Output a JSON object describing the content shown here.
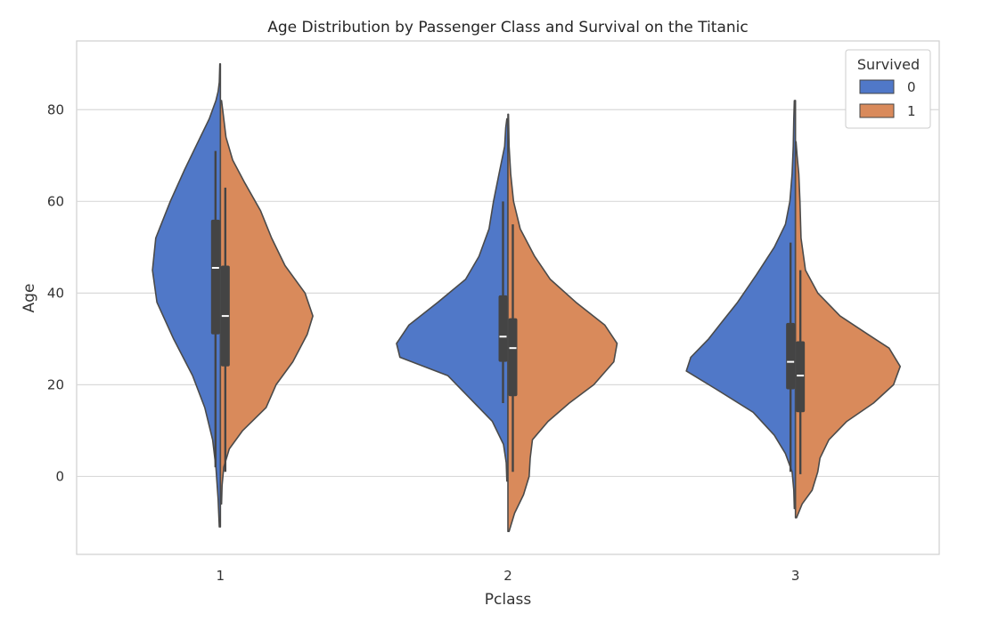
{
  "chart_data": {
    "type": "violin",
    "title": "Age Distribution by Passenger Class and Survival on the Titanic",
    "xlabel": "Pclass",
    "ylabel": "Age",
    "categories": [
      "1",
      "2",
      "3"
    ],
    "ylim": [
      -17,
      95
    ],
    "yticks": [
      0,
      20,
      40,
      60,
      80
    ],
    "grid": "horizontal",
    "split": true,
    "legend": {
      "title": "Survived",
      "placement": "top-right",
      "entries": [
        {
          "label": "0",
          "color": "#5078c8"
        },
        {
          "label": "1",
          "color": "#d98a5b"
        }
      ]
    },
    "series": [
      {
        "name": "0",
        "side": "left",
        "color": "#5078c8",
        "groups": [
          {
            "category": "1",
            "range": [
              -11,
              90
            ],
            "box": {
              "q1": 31,
              "median": 45.5,
              "q3": 56,
              "whisker_low": 2,
              "whisker_high": 71
            },
            "profile": [
              [
                -11,
                0.01
              ],
              [
                -5,
                0.02
              ],
              [
                2,
                0.04
              ],
              [
                8,
                0.07
              ],
              [
                15,
                0.14
              ],
              [
                22,
                0.25
              ],
              [
                30,
                0.42
              ],
              [
                38,
                0.57
              ],
              [
                45,
                0.61
              ],
              [
                52,
                0.58
              ],
              [
                60,
                0.45
              ],
              [
                67,
                0.32
              ],
              [
                73,
                0.2
              ],
              [
                78,
                0.1
              ],
              [
                82,
                0.04
              ],
              [
                84,
                0.02
              ],
              [
                86,
                0.01
              ],
              [
                90,
                0.005
              ]
            ]
          },
          {
            "category": "2",
            "range": [
              -1,
              78
            ],
            "box": {
              "q1": 25,
              "median": 30.5,
              "q3": 39.5,
              "whisker_low": 16,
              "whisker_high": 60
            },
            "profile": [
              [
                -1,
                0.01
              ],
              [
                3,
                0.015
              ],
              [
                7,
                0.04
              ],
              [
                12,
                0.14
              ],
              [
                17,
                0.34
              ],
              [
                22,
                0.54
              ],
              [
                26,
                0.97
              ],
              [
                29,
                1.0
              ],
              [
                33,
                0.89
              ],
              [
                38,
                0.63
              ],
              [
                43,
                0.38
              ],
              [
                48,
                0.26
              ],
              [
                54,
                0.17
              ],
              [
                60,
                0.13
              ],
              [
                66,
                0.08
              ],
              [
                72,
                0.03
              ],
              [
                76,
                0.02
              ],
              [
                78,
                0.01
              ]
            ]
          },
          {
            "category": "3",
            "range": [
              -7,
              82
            ],
            "box": {
              "q1": 19,
              "median": 25,
              "q3": 33.5,
              "whisker_low": 1,
              "whisker_high": 51
            },
            "profile": [
              [
                -7,
                0.01
              ],
              [
                -3,
                0.015
              ],
              [
                1,
                0.03
              ],
              [
                5,
                0.09
              ],
              [
                9,
                0.19
              ],
              [
                14,
                0.38
              ],
              [
                19,
                0.71
              ],
              [
                23,
                0.98
              ],
              [
                26,
                0.94
              ],
              [
                30,
                0.78
              ],
              [
                34,
                0.65
              ],
              [
                38,
                0.52
              ],
              [
                44,
                0.35
              ],
              [
                50,
                0.19
              ],
              [
                55,
                0.09
              ],
              [
                60,
                0.05
              ],
              [
                66,
                0.03
              ],
              [
                72,
                0.02
              ],
              [
                78,
                0.015
              ],
              [
                82,
                0.01
              ]
            ]
          }
        ]
      },
      {
        "name": "1",
        "side": "right",
        "color": "#d98a5b",
        "groups": [
          {
            "category": "1",
            "range": [
              -6,
              82
            ],
            "box": {
              "q1": 24,
              "median": 35,
              "q3": 46,
              "whisker_low": 1,
              "whisker_high": 63
            },
            "profile": [
              [
                -6,
                0.01
              ],
              [
                -2,
                0.015
              ],
              [
                2,
                0.03
              ],
              [
                6,
                0.08
              ],
              [
                10,
                0.2
              ],
              [
                15,
                0.41
              ],
              [
                20,
                0.5
              ],
              [
                25,
                0.65
              ],
              [
                31,
                0.78
              ],
              [
                35,
                0.83
              ],
              [
                40,
                0.76
              ],
              [
                46,
                0.58
              ],
              [
                52,
                0.46
              ],
              [
                58,
                0.36
              ],
              [
                64,
                0.22
              ],
              [
                69,
                0.11
              ],
              [
                74,
                0.05
              ],
              [
                79,
                0.025
              ],
              [
                82,
                0.01
              ]
            ]
          },
          {
            "category": "2",
            "range": [
              -12,
              79
            ],
            "box": {
              "q1": 17.5,
              "median": 28,
              "q3": 34.5,
              "whisker_low": 1,
              "whisker_high": 55
            },
            "profile": [
              [
                -12,
                0.01
              ],
              [
                -8,
                0.06
              ],
              [
                -4,
                0.14
              ],
              [
                0,
                0.19
              ],
              [
                4,
                0.2
              ],
              [
                8,
                0.22
              ],
              [
                12,
                0.36
              ],
              [
                16,
                0.55
              ],
              [
                20,
                0.77
              ],
              [
                25,
                0.95
              ],
              [
                29,
                0.98
              ],
              [
                33,
                0.87
              ],
              [
                38,
                0.61
              ],
              [
                43,
                0.38
              ],
              [
                48,
                0.24
              ],
              [
                54,
                0.11
              ],
              [
                60,
                0.05
              ],
              [
                66,
                0.025
              ],
              [
                72,
                0.01
              ],
              [
                79,
                0.005
              ]
            ]
          },
          {
            "category": "3",
            "range": [
              -9,
              73
            ],
            "box": {
              "q1": 14,
              "median": 22,
              "q3": 29.5,
              "whisker_low": 0.5,
              "whisker_high": 45
            },
            "profile": [
              [
                -9,
                0.01
              ],
              [
                -6,
                0.06
              ],
              [
                -3,
                0.15
              ],
              [
                1,
                0.2
              ],
              [
                4,
                0.22
              ],
              [
                8,
                0.3
              ],
              [
                12,
                0.46
              ],
              [
                16,
                0.7
              ],
              [
                20,
                0.88
              ],
              [
                24,
                0.94
              ],
              [
                28,
                0.84
              ],
              [
                31,
                0.65
              ],
              [
                35,
                0.4
              ],
              [
                40,
                0.2
              ],
              [
                45,
                0.09
              ],
              [
                52,
                0.05
              ],
              [
                60,
                0.04
              ],
              [
                66,
                0.03
              ],
              [
                70,
                0.015
              ],
              [
                73,
                0.005
              ]
            ]
          }
        ]
      }
    ]
  }
}
